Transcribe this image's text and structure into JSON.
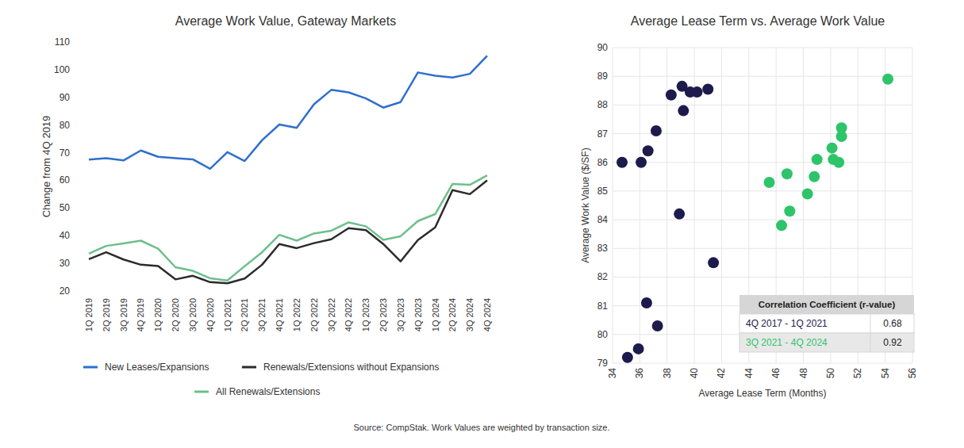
{
  "chart_data": [
    {
      "type": "line",
      "title": "Average Work Value, Gateway Markets",
      "y_label": "Change from 4Q 2019",
      "categories": [
        "1Q 2019",
        "2Q 2019",
        "3Q 2019",
        "4Q 2019",
        "1Q 2020",
        "2Q 2020",
        "3Q 2020",
        "4Q 2020",
        "1Q 2021",
        "2Q 2021",
        "3Q 2021",
        "4Q 2021",
        "1Q 2022",
        "2Q 2022",
        "3Q 2022",
        "4Q 2022",
        "1Q 2023",
        "2Q 2023",
        "3Q 2023",
        "4Q 2023",
        "1Q 2024",
        "2Q 2024",
        "3Q 2024",
        "4Q 2024"
      ],
      "series": [
        {
          "name": "New Leases/Expansions",
          "color": "#2f6fce",
          "values": [
            67.5,
            68,
            67.2,
            70.8,
            68.5,
            68,
            67.6,
            64.2,
            70.2,
            67,
            74.5,
            80.2,
            79,
            87.5,
            92.7,
            91.8,
            89.6,
            86.3,
            88.3,
            99,
            97.8,
            97.2,
            98.5,
            105
          ]
        },
        {
          "name": "Renewals/Extensions without Expansions",
          "color": "#2b2b2b",
          "values": [
            31.5,
            34,
            31.4,
            29.5,
            29,
            24.2,
            25.5,
            23.2,
            22.8,
            24.5,
            29.5,
            37,
            35.5,
            37.3,
            38.7,
            42.7,
            42,
            37,
            30.7,
            38.4,
            43,
            56.5,
            55,
            60
          ]
        },
        {
          "name": "All Renewals/Extensions",
          "color": "#6dbf8b",
          "values": [
            33.5,
            36.3,
            37.2,
            38.2,
            35.3,
            28.6,
            27.3,
            24.6,
            23.8,
            29,
            34,
            40.3,
            38.2,
            40.8,
            41.8,
            44.8,
            43.4,
            38.5,
            39.8,
            45.3,
            47.8,
            58.7,
            58.4,
            61.8
          ]
        }
      ],
      "ylim": [
        20,
        110
      ],
      "yticks": [
        20,
        30,
        40,
        50,
        60,
        70,
        80,
        90,
        100,
        110
      ],
      "grid": false,
      "legend": "bottom"
    },
    {
      "type": "scatter",
      "title": "Average Lease Term vs. Average Work Value",
      "x_label": "Average Lease Term (Months)",
      "y_label": "Average Work Value ($/SF)",
      "legend_title": "Correlation Coefficient (r-value)",
      "series": [
        {
          "name": "4Q 2017 - 1Q 2021",
          "color": "#1d1b4c",
          "r_value": 0.68,
          "x": [
            34.7,
            36.1,
            36.6,
            37.2,
            38.3,
            39.1,
            39.7,
            40.2,
            41.0,
            39.2,
            38.9,
            41.4,
            36.5,
            37.3,
            35.9,
            35.1
          ],
          "values": [
            86.0,
            86.0,
            86.4,
            87.1,
            88.35,
            88.65,
            88.45,
            88.45,
            88.55,
            87.8,
            84.2,
            82.5,
            81.1,
            80.3,
            79.5,
            79.2
          ]
        },
        {
          "name": "3Q 2021 - 4Q 2024",
          "color": "#2ec46a",
          "r_value": 0.92,
          "x": [
            45.5,
            46.8,
            47.0,
            46.4,
            48.3,
            48.8,
            49.0,
            50.1,
            50.2,
            50.6,
            50.8,
            50.8,
            54.2
          ],
          "values": [
            85.3,
            85.6,
            84.3,
            83.8,
            84.9,
            85.5,
            86.1,
            86.5,
            86.1,
            86.0,
            86.9,
            87.2,
            88.9
          ]
        }
      ],
      "xlim": [
        34,
        56
      ],
      "xticks": [
        34,
        36,
        38,
        40,
        42,
        44,
        46,
        48,
        50,
        52,
        54,
        56
      ],
      "ylim": [
        79,
        90
      ],
      "yticks": [
        79,
        80,
        81,
        82,
        83,
        84,
        85,
        86,
        87,
        88,
        89,
        90
      ],
      "grid": true,
      "marker": "circle",
      "legend": "bottom-right"
    }
  ],
  "source": "Source: CompStak. Work Values are weighted by transaction size."
}
